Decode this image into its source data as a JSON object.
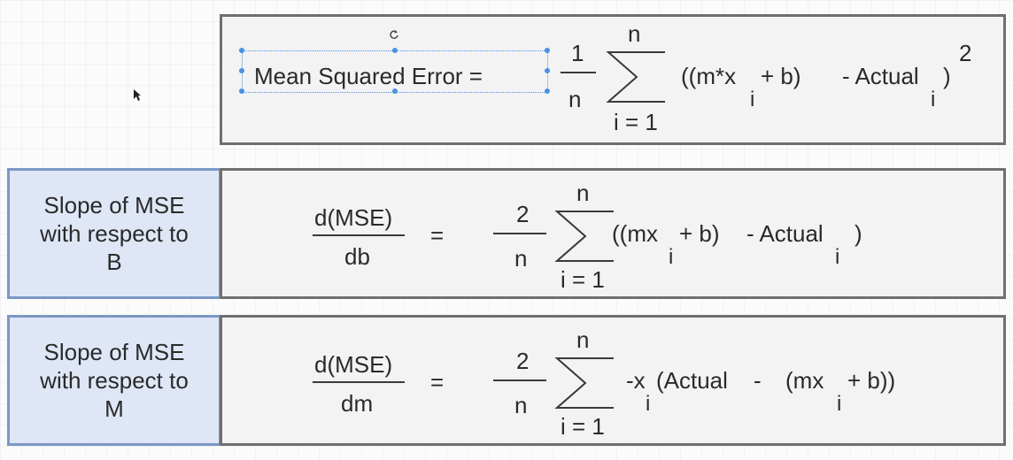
{
  "colors": {
    "box_border": "#6f6f6f",
    "box_fill": "#f3f3f3",
    "label_border": "#7a97c6",
    "label_fill": "#dfe7f6",
    "selection": "#4a90e2"
  },
  "formula_mse": {
    "lhs": "Mean Squared Error =",
    "frac_num": "1",
    "frac_den": "n",
    "sum_top": "n",
    "sum_bottom": "i = 1",
    "body_open": "((m*x",
    "sub_i1": "i",
    "body_mid": "+ b)",
    "body_minus": "- Actual",
    "sub_i2": "i",
    "close": ")",
    "exponent": "2"
  },
  "row_b": {
    "label_line1": "Slope of MSE",
    "label_line2": "with respect to",
    "label_line3": "B",
    "deriv_num": "d(MSE)",
    "deriv_den": "db",
    "equals": "=",
    "frac_num": "2",
    "frac_den": "n",
    "sum_top": "n",
    "sum_bottom": "i = 1",
    "body_open": "((mx",
    "sub_i1": "i",
    "body_mid": "+ b)",
    "body_minus": "- Actual",
    "sub_i2": "i",
    "close": ")"
  },
  "row_m": {
    "label_line1": "Slope of MSE",
    "label_line2": "with respect to",
    "label_line3": "M",
    "deriv_num": "d(MSE)",
    "deriv_den": "dm",
    "equals": "=",
    "frac_num": "2",
    "frac_den": "n",
    "sum_top": "n",
    "sum_bottom": "i = 1",
    "body_open": "-x",
    "sub_i1": "i",
    "body_actual": "(Actual",
    "body_minus": "-",
    "body_paren": "(mx",
    "sub_i2": "i",
    "body_end": "+ b))"
  }
}
